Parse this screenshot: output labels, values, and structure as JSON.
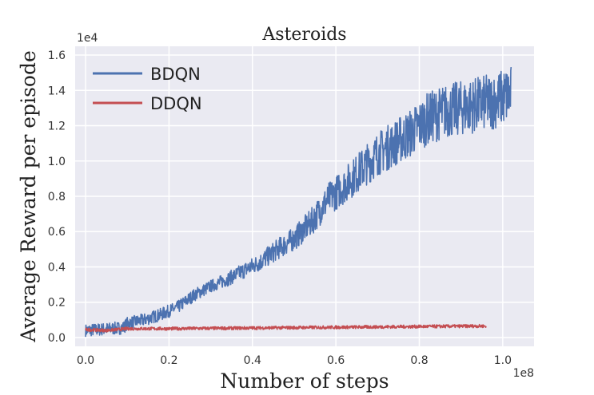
{
  "chart_data": {
    "type": "line",
    "title": "Asteroids",
    "xlabel": "Number of steps",
    "ylabel": "Average Reward per episode",
    "x_scale_label": "1e8",
    "y_scale_label": "1e4",
    "xlim": [
      -0.025,
      1.075
    ],
    "ylim": [
      -0.05,
      1.65
    ],
    "x_ticks": [
      0.0,
      0.2,
      0.4,
      0.6,
      0.8,
      1.0
    ],
    "x_tick_labels": [
      "0.0",
      "0.2",
      "0.4",
      "0.6",
      "0.8",
      "1.0"
    ],
    "y_ticks": [
      0.0,
      0.2,
      0.4,
      0.6,
      0.8,
      1.0,
      1.2,
      1.4,
      1.6
    ],
    "y_tick_labels": [
      "0.0",
      "0.2",
      "0.4",
      "0.6",
      "0.8",
      "1.0",
      "1.2",
      "1.4",
      "1.6"
    ],
    "grid": true,
    "legend_position": "top-left",
    "background_color": "#EAEAF2",
    "series": [
      {
        "name": "BDQN",
        "color": "#4C72B0",
        "noise": 0.12,
        "x": [
          0.0,
          0.03,
          0.06,
          0.09,
          0.1,
          0.14,
          0.18,
          0.22,
          0.26,
          0.3,
          0.34,
          0.38,
          0.42,
          0.46,
          0.5,
          0.54,
          0.58,
          0.62,
          0.66,
          0.7,
          0.74,
          0.78,
          0.82,
          0.86,
          0.9,
          0.94,
          0.98,
          1.02
        ],
        "y": [
          0.04,
          0.045,
          0.05,
          0.055,
          0.08,
          0.1,
          0.13,
          0.17,
          0.24,
          0.29,
          0.33,
          0.38,
          0.43,
          0.5,
          0.56,
          0.65,
          0.78,
          0.86,
          0.95,
          1.04,
          1.1,
          1.16,
          1.24,
          1.28,
          1.3,
          1.32,
          1.34,
          1.38
        ]
      },
      {
        "name": "DDQN",
        "color": "#C44E52",
        "noise": 0.06,
        "x": [
          0.0,
          0.05,
          0.1,
          0.2,
          0.3,
          0.4,
          0.5,
          0.6,
          0.7,
          0.8,
          0.9,
          0.96
        ],
        "y": [
          0.045,
          0.04,
          0.05,
          0.05,
          0.052,
          0.054,
          0.056,
          0.058,
          0.06,
          0.062,
          0.064,
          0.065
        ]
      }
    ]
  }
}
